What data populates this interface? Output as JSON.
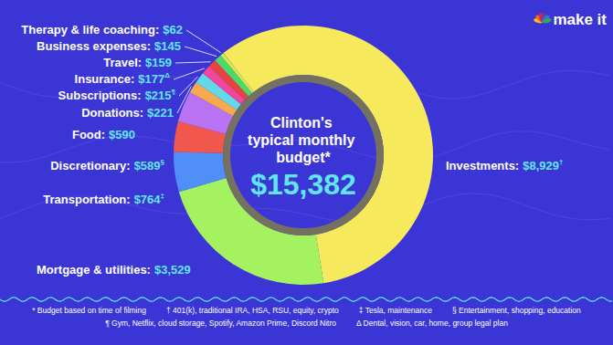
{
  "chart_data": {
    "type": "donut",
    "title": "Clinton's typical monthly budget*",
    "total": 15382,
    "total_label": "$15,382",
    "categories": [
      "Investments:",
      "Mortgage & utilities:",
      "Transportation:",
      "Discretionary:",
      "Food:",
      "Donations:",
      "Subscriptions:",
      "Insurance:",
      "Travel:",
      "Business expenses:",
      "Therapy & life coaching:"
    ],
    "values": [
      8929,
      3529,
      764,
      589,
      590,
      221,
      215,
      177,
      159,
      145,
      62
    ],
    "value_labels": [
      "$8,929†",
      "$3,529",
      "$764‡",
      "$589§",
      "$590",
      "$221",
      "$215¶",
      "$177Δ",
      "$159",
      "$145",
      "$62"
    ],
    "colors": [
      "#f6ea5c",
      "#a4f25f",
      "#4f8ff7",
      "#f2574e",
      "#b872f2",
      "#f7a94e",
      "#63d8ea",
      "#f0479a",
      "#e9433f",
      "#4ed86a",
      "#d8ec4a"
    ],
    "data_labels": true
  },
  "footnotes": [
    "* Budget based on time of filming",
    "† 401(k), traditional IRA, HSA, RSU, equity, crypto",
    "‡ Tesla, maintenance",
    "§ Entertainment, shopping, education",
    "¶ Gym, Netflix, cloud storage, Spotify, Amazon Prime, Discord Nitro",
    "Δ Dental, vision, car, home, group legal plan"
  ],
  "brand": "make it"
}
